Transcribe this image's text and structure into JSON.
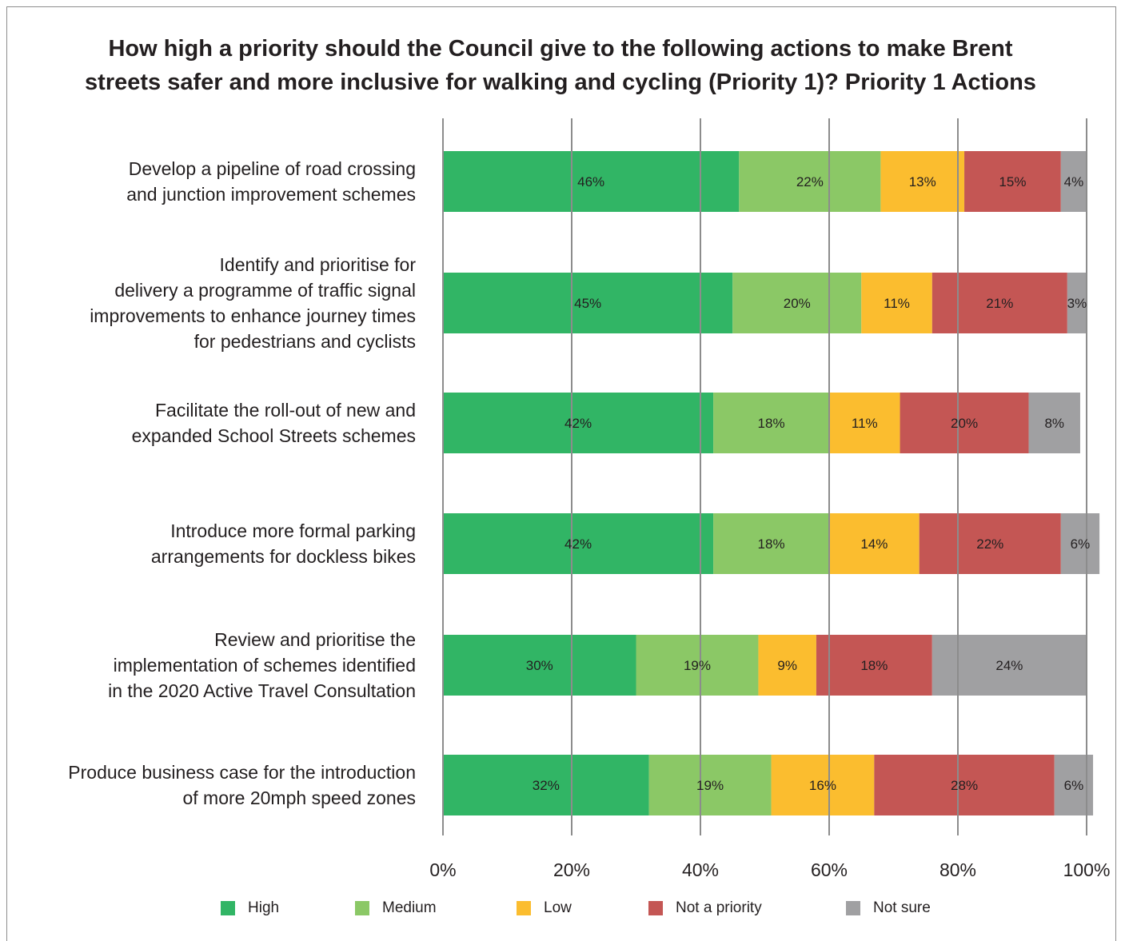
{
  "title_lines": [
    "How high a priority should the Council give to the following actions to make Brent",
    "streets safer and more inclusive for walking and cycling (Priority 1)?  Priority 1 Actions"
  ],
  "chart_data": {
    "type": "bar",
    "orientation": "horizontal",
    "stacked": true,
    "title": "How high a priority should the Council give to the following actions to make Brent streets safer and more inclusive for walking and cycling (Priority 1)?  Priority 1 Actions",
    "categories": [
      [
        "Develop a pipeline of road crossing",
        "and junction improvement schemes"
      ],
      [
        "Identify and prioritise for",
        "delivery a programme of traffic signal",
        "improvements to enhance journey times",
        "for pedestrians and cyclists"
      ],
      [
        "Facilitate the roll-out of new and",
        "expanded School Streets schemes"
      ],
      [
        "Introduce more formal parking",
        "arrangements for dockless bikes"
      ],
      [
        "Review and prioritise the",
        "implementation of schemes identified",
        "in the 2020 Active Travel Consultation"
      ],
      [
        "Produce business case for the introduction",
        "of more 20mph speed zones"
      ]
    ],
    "series": [
      {
        "name": "High",
        "color": "#31b565",
        "values": [
          46,
          45,
          42,
          42,
          30,
          32
        ]
      },
      {
        "name": "Medium",
        "color": "#8bc866",
        "values": [
          22,
          20,
          18,
          18,
          19,
          19
        ]
      },
      {
        "name": "Low",
        "color": "#fbbd2f",
        "values": [
          13,
          11,
          11,
          14,
          9,
          16
        ]
      },
      {
        "name": "Not a priority",
        "color": "#c45654",
        "values": [
          15,
          21,
          20,
          22,
          18,
          28
        ]
      },
      {
        "name": "Not sure",
        "color": "#a0a0a2",
        "values": [
          4,
          3,
          8,
          6,
          24,
          6
        ]
      }
    ],
    "x_ticks": [
      "0%",
      "20%",
      "40%",
      "60%",
      "80%",
      "100%"
    ],
    "xlim": [
      0,
      100
    ],
    "grid": true,
    "legend_position": "bottom"
  }
}
